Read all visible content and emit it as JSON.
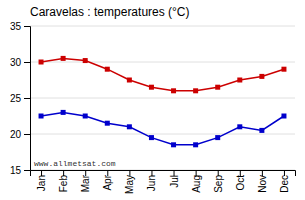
{
  "chart_data": {
    "type": "line",
    "title": "Caravelas : temperatures (°C)",
    "categories": [
      "Jan",
      "Feb",
      "Mar",
      "Apr",
      "May",
      "Jun",
      "Jul",
      "Aug",
      "Sep",
      "Oct",
      "Nov",
      "Dec"
    ],
    "series": [
      {
        "color": "#cc0000",
        "marker": "square",
        "values": [
          30.0,
          30.5,
          30.2,
          29.0,
          27.5,
          26.5,
          26.0,
          26.0,
          26.5,
          27.5,
          28.0,
          29.0
        ]
      },
      {
        "color": "#0000cc",
        "marker": "square",
        "values": [
          22.5,
          23.0,
          22.5,
          21.5,
          21.0,
          19.5,
          18.5,
          18.5,
          19.5,
          21.0,
          20.5,
          22.5
        ]
      }
    ],
    "ylim": [
      15,
      35
    ],
    "yticks": [
      15,
      20,
      25,
      30,
      35
    ],
    "grid": true,
    "annotation": "www.allmetsat.com"
  }
}
